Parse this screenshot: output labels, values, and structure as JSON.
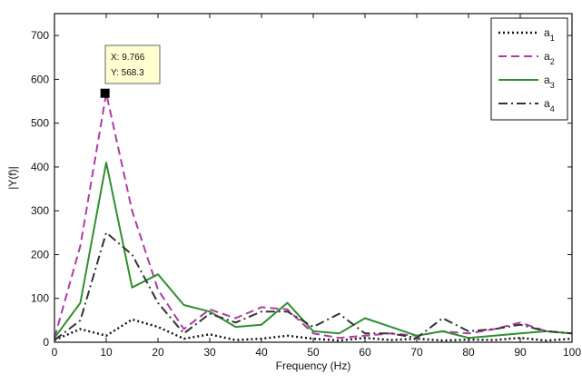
{
  "chart_data": {
    "type": "line",
    "title": "",
    "xlabel": "Frequency (Hz)",
    "ylabel": "|Y(f)|",
    "xlim": [
      0,
      100
    ],
    "ylim": [
      0,
      750
    ],
    "xticks": [
      0,
      10,
      20,
      30,
      40,
      50,
      60,
      70,
      80,
      90,
      100
    ],
    "yticks": [
      0,
      100,
      200,
      300,
      400,
      500,
      600,
      700
    ],
    "grid": false,
    "legend_position": "top-right",
    "series": [
      {
        "name": "a1",
        "legend_base": "a",
        "legend_sub": "1",
        "color": "#111111",
        "style": "dotted",
        "x": [
          0,
          5,
          10,
          15,
          20,
          25,
          30,
          35,
          40,
          45,
          50,
          55,
          60,
          65,
          70,
          75,
          80,
          85,
          90,
          95,
          100
        ],
        "y": [
          5,
          30,
          15,
          52,
          35,
          8,
          18,
          5,
          8,
          15,
          8,
          4,
          10,
          5,
          8,
          4,
          6,
          5,
          10,
          4,
          8
        ]
      },
      {
        "name": "a2",
        "legend_base": "a",
        "legend_sub": "2",
        "color": "#b03aa6",
        "style": "dashed",
        "x": [
          0,
          5,
          10,
          15,
          20,
          25,
          30,
          35,
          40,
          45,
          50,
          55,
          60,
          65,
          70,
          75,
          80,
          85,
          90,
          95,
          100
        ],
        "y": [
          10,
          220,
          568,
          300,
          120,
          30,
          75,
          55,
          80,
          75,
          20,
          10,
          15,
          20,
          15,
          25,
          20,
          30,
          45,
          25,
          20
        ]
      },
      {
        "name": "a3",
        "legend_base": "a",
        "legend_sub": "3",
        "color": "#2f8f2f",
        "style": "solid",
        "x": [
          0,
          5,
          10,
          15,
          20,
          25,
          30,
          35,
          40,
          45,
          50,
          55,
          60,
          65,
          70,
          75,
          80,
          85,
          90,
          95,
          100
        ],
        "y": [
          10,
          90,
          410,
          125,
          155,
          85,
          70,
          35,
          40,
          90,
          25,
          20,
          55,
          35,
          15,
          25,
          10,
          15,
          20,
          25,
          20
        ]
      },
      {
        "name": "a4",
        "legend_base": "a",
        "legend_sub": "4",
        "color": "#333333",
        "style": "dashdot",
        "x": [
          0,
          5,
          10,
          15,
          20,
          25,
          30,
          35,
          40,
          45,
          50,
          55,
          60,
          65,
          70,
          75,
          80,
          85,
          90,
          95,
          100
        ],
        "y": [
          5,
          50,
          250,
          200,
          90,
          20,
          65,
          45,
          70,
          70,
          35,
          65,
          20,
          20,
          10,
          55,
          25,
          30,
          40,
          25,
          20
        ]
      }
    ],
    "datatip": {
      "x": 9.766,
      "y": 568.3,
      "x_label": "X: 9.766",
      "y_label": "Y: 568.3"
    }
  }
}
